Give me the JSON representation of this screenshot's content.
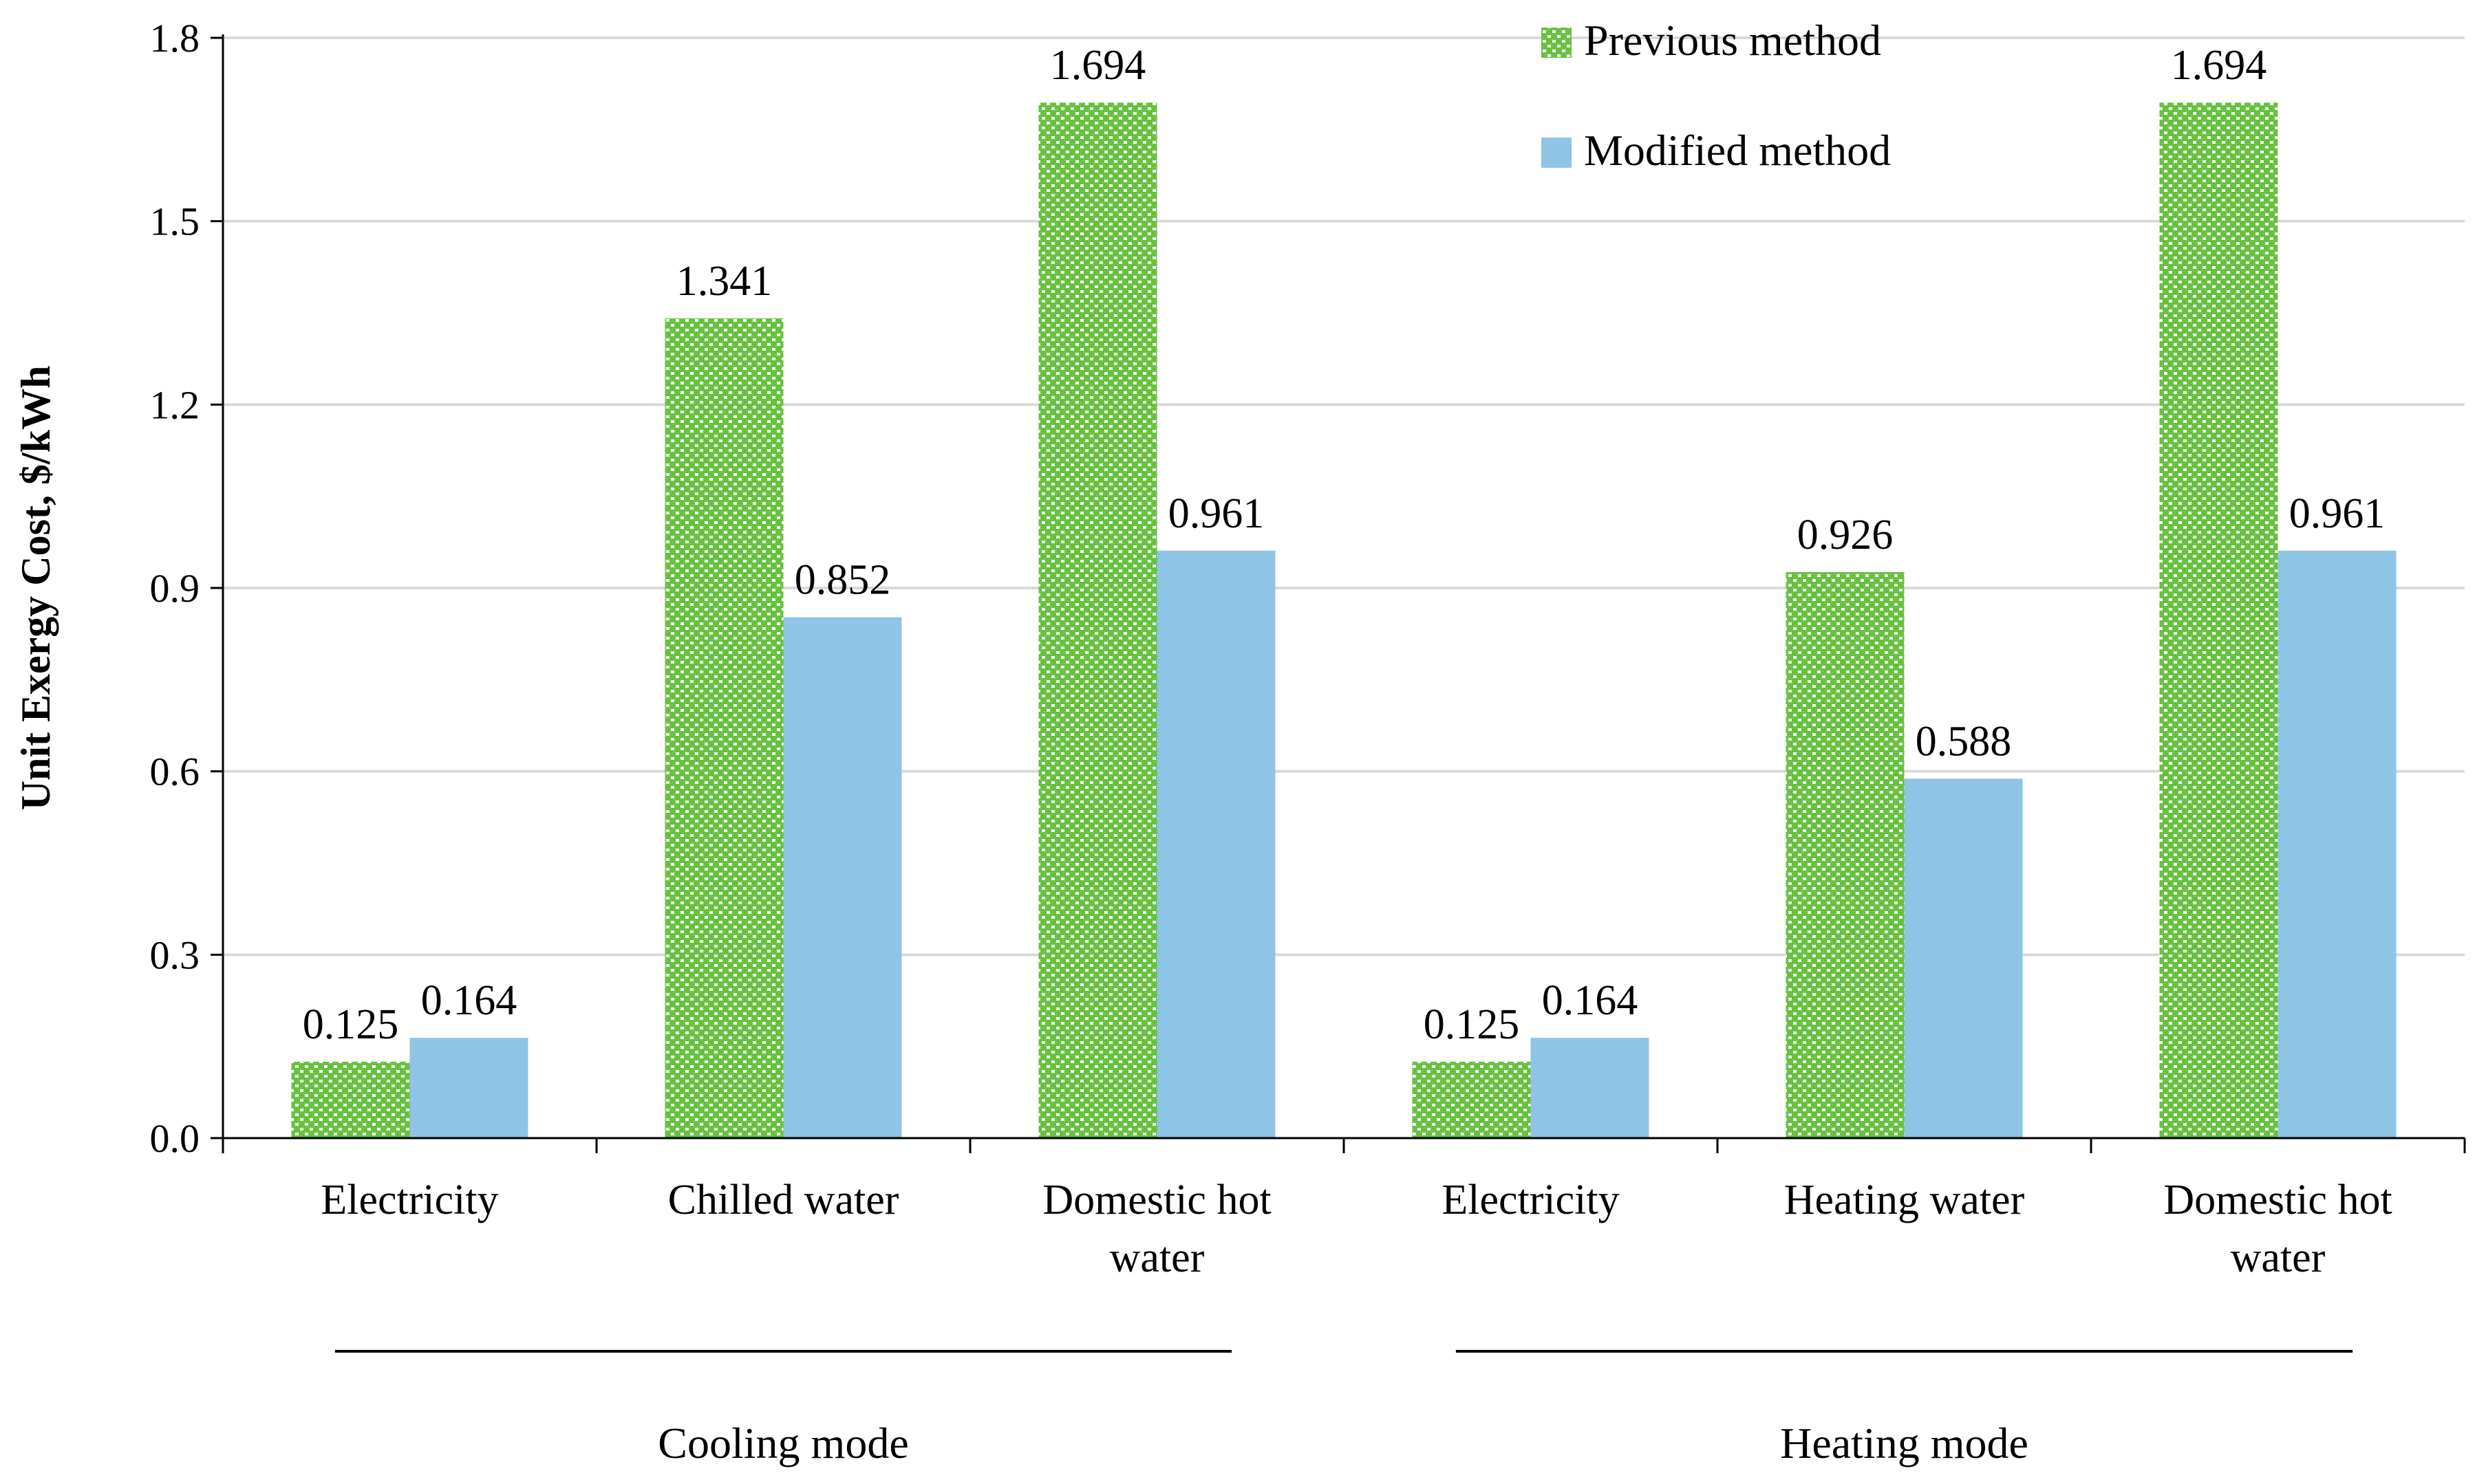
{
  "chart_data": {
    "type": "bar",
    "title": "",
    "ylabel": "Unit Exergy Cost, $/kWh",
    "xlabel": "",
    "ylim": [
      0,
      1.8
    ],
    "yticks": [
      "0.0",
      "0.3",
      "0.6",
      "0.9",
      "1.2",
      "1.5",
      "1.8"
    ],
    "categories": [
      [
        "Electricity"
      ],
      [
        "Chilled water"
      ],
      [
        "Domestic hot",
        "water"
      ],
      [
        "Electricity"
      ],
      [
        "Heating water"
      ],
      [
        "Domestic hot",
        "water"
      ]
    ],
    "groups": [
      {
        "label": "Cooling mode",
        "categories": [
          0,
          1,
          2
        ]
      },
      {
        "label": "Heating mode",
        "categories": [
          3,
          4,
          5
        ]
      }
    ],
    "series": [
      {
        "name": "Previous method",
        "pattern": "dotted",
        "color": "#67c23f",
        "values": [
          0.125,
          1.341,
          1.694,
          0.125,
          0.926,
          1.694
        ],
        "labels": [
          "0.125",
          "1.341",
          "1.694",
          "0.125",
          "0.926",
          "1.694"
        ]
      },
      {
        "name": "Modified method",
        "pattern": "solid",
        "color": "#8ec4e6",
        "values": [
          0.164,
          0.852,
          0.961,
          0.164,
          0.588,
          0.961
        ],
        "labels": [
          "0.164",
          "0.852",
          "0.961",
          "0.164",
          "0.588",
          "0.961"
        ]
      }
    ],
    "legend_position": "top-right",
    "grid": true
  }
}
